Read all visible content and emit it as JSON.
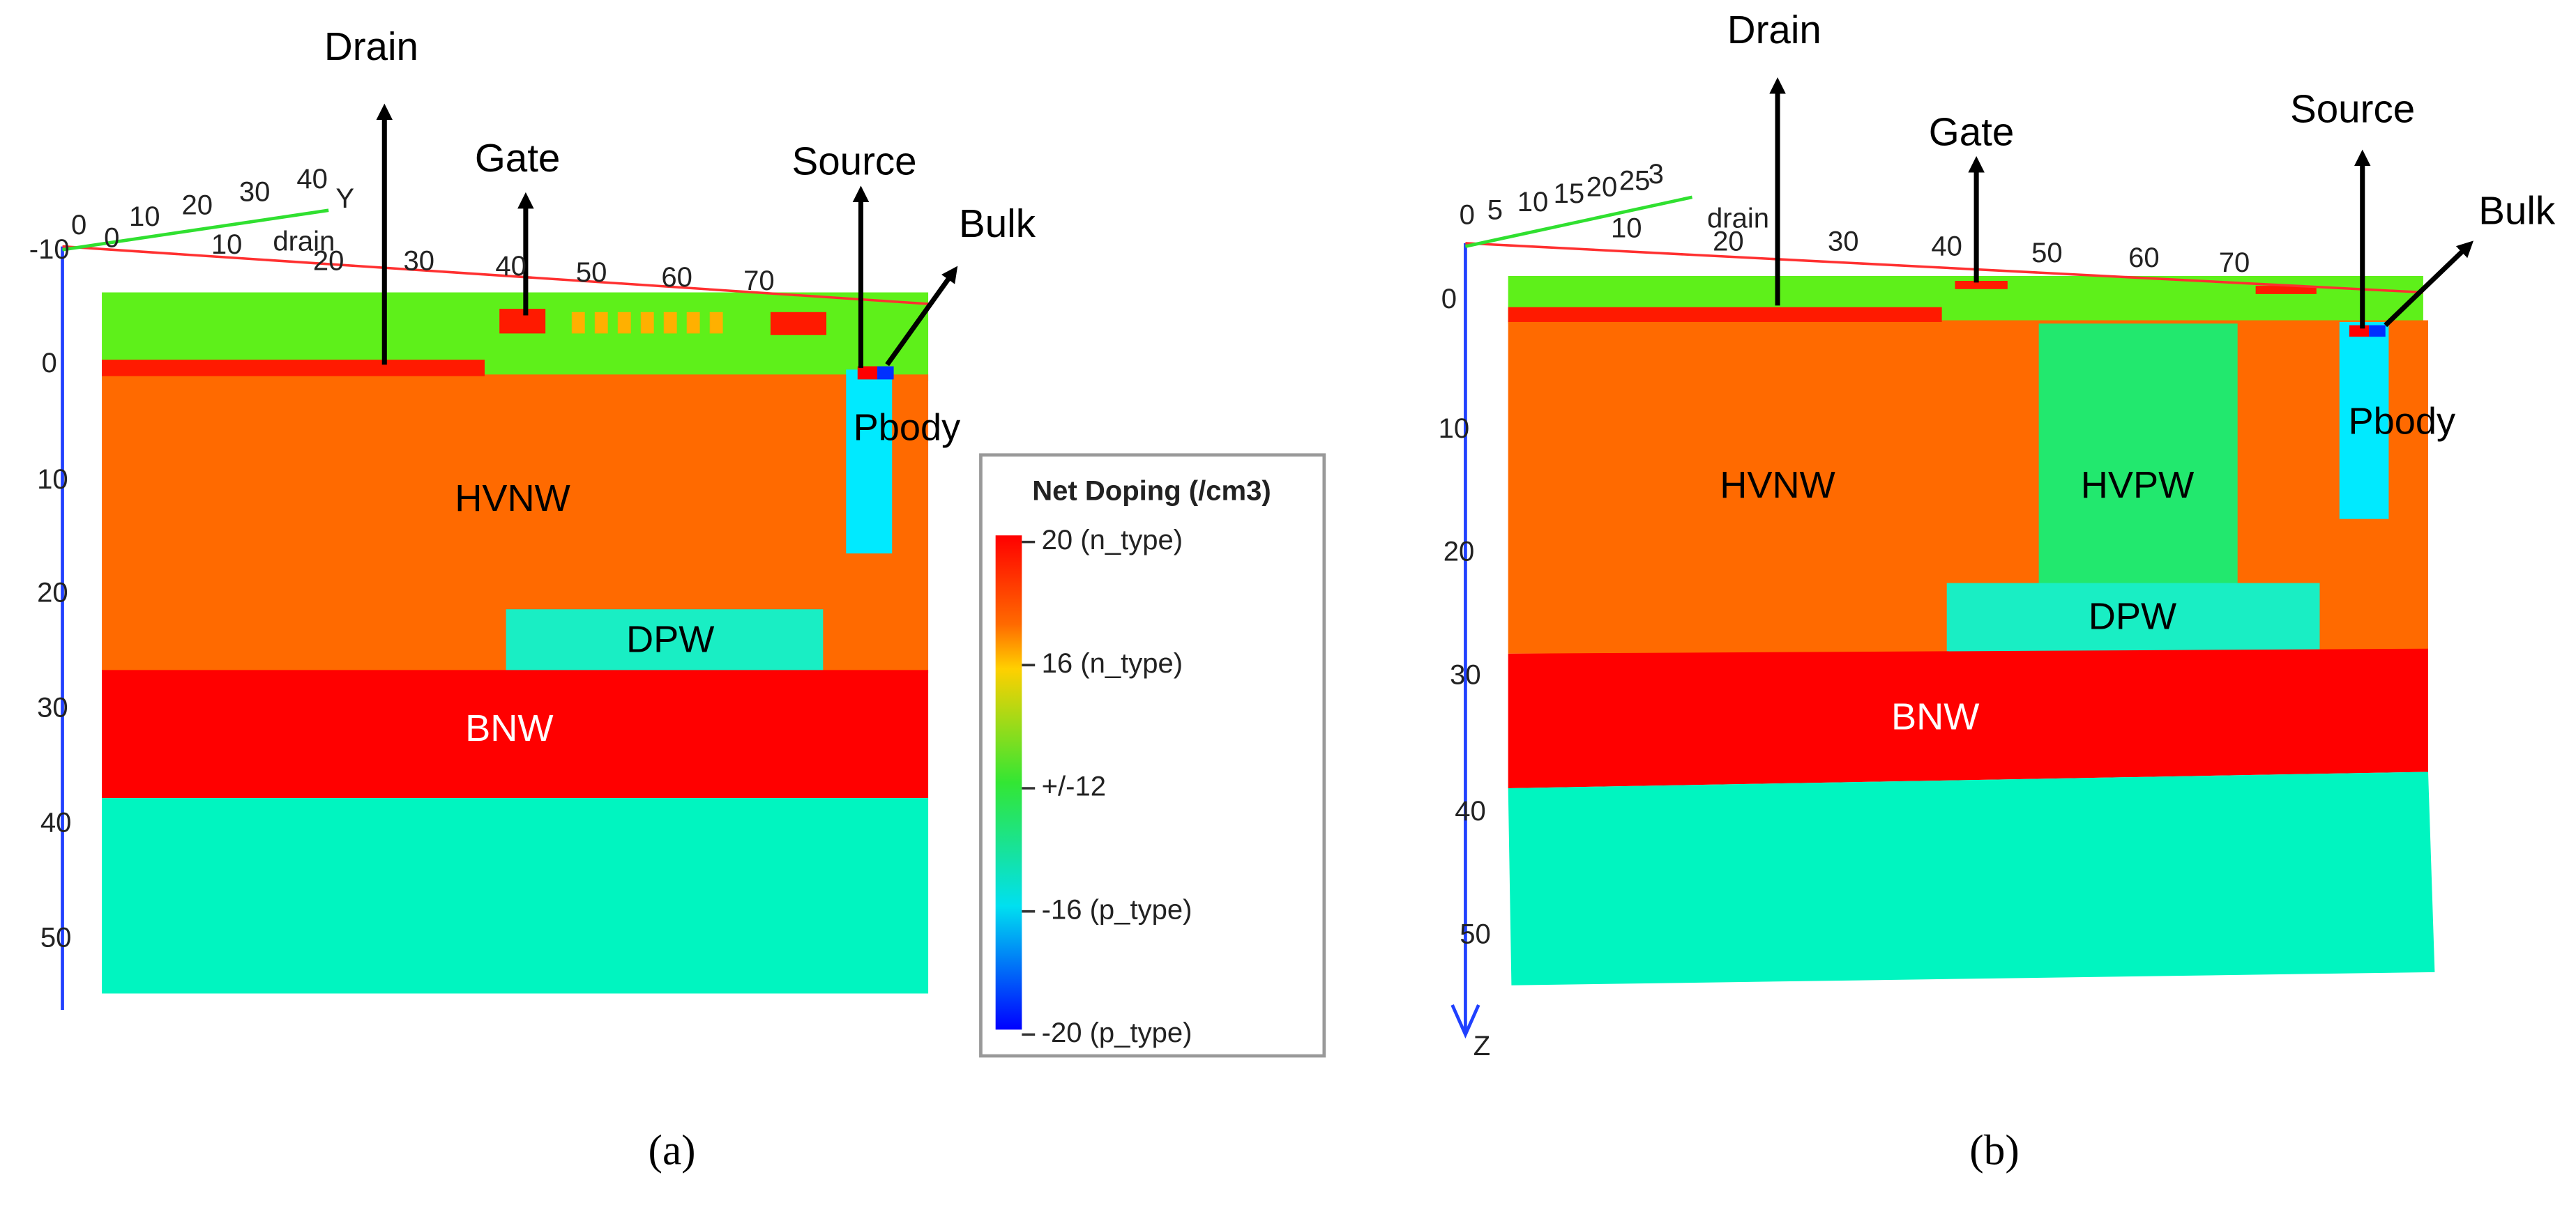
{
  "panels": [
    {
      "label": "(a)",
      "terminals": [
        "Drain",
        "Gate",
        "Source",
        "Bulk"
      ],
      "regions": [
        "HVNW",
        "DPW",
        "BNW",
        "Pbody"
      ],
      "z_axis_labels": [
        "-10",
        "0",
        "10",
        "20",
        "30",
        "40",
        "50"
      ],
      "x_axis_labels": [
        "10",
        "20",
        "30",
        "40",
        "50",
        "60",
        "70"
      ],
      "y_axis_labels": [
        "0",
        "0",
        "10",
        "20",
        "30",
        "40"
      ],
      "axis_names": [
        "Y",
        "drain"
      ]
    },
    {
      "label": "(b)",
      "terminals": [
        "Drain",
        "Gate",
        "Source",
        "Bulk"
      ],
      "regions": [
        "HVNW",
        "HVPW",
        "DPW",
        "BNW",
        "Pbody"
      ],
      "z_axis_labels": [
        "0",
        "10",
        "20",
        "30",
        "40",
        "50"
      ],
      "x_axis_labels": [
        "10",
        "20",
        "30",
        "40",
        "50",
        "60",
        "70"
      ],
      "y_axis_labels": [
        "0",
        "5",
        "10",
        "15",
        "20",
        "25",
        "3"
      ],
      "axis_names": [
        "drain",
        "Z"
      ]
    }
  ],
  "legend": {
    "title": "Net Doping (/cm3)",
    "labels": [
      "20 (n_type)",
      "16 (n_type)",
      "+/-12",
      "-16 (p_type)",
      "-20 (p_type)"
    ]
  }
}
